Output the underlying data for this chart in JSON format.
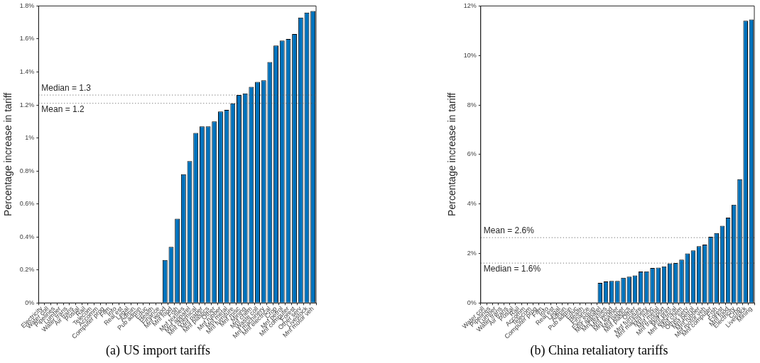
{
  "chart_data": [
    {
      "type": "bar",
      "title": "(a) US import tariffs",
      "ylabel": "Percentage increase in tariff",
      "color": "#0072bd",
      "categories": [
        "Electricity",
        "Water coll",
        "Pipelines",
        "Lumber",
        "Water trans",
        "Air trans",
        "Postal",
        "Rail",
        "Telecom",
        "Accomm",
        "Computer prog",
        "Film",
        "Info",
        "Real est",
        "Legal",
        "Admin",
        "Pub admin",
        "Educ",
        "Health",
        "Finance",
        "Mnf wood",
        "Mnf food",
        "Fish",
        "Mnf textiles",
        "Mnf apparel",
        "Mnf chemical",
        "Mnf paper",
        "Mnf plastics",
        "Other",
        "Mnf rubber",
        "Mnf metal",
        "Mnf furniture",
        "Mnf misc",
        "Mining",
        "Mnf chem",
        "Waste coll",
        "Mnf machinery",
        "Mnf electrical",
        "Crop",
        "Mnf petrol",
        "Mnf computer",
        "Forest",
        "Other serv",
        "Livestock",
        "Mnf motor veh"
      ],
      "values": [
        0,
        0,
        0,
        0,
        0,
        0,
        0,
        0,
        0,
        0,
        0,
        0,
        0,
        0,
        0,
        0,
        0,
        0,
        0,
        0,
        0.26,
        0.34,
        0.51,
        0.78,
        0.86,
        1.03,
        1.07,
        1.07,
        1.1,
        1.16,
        1.17,
        1.21,
        1.26,
        1.27,
        1.31,
        1.34,
        1.35,
        1.46,
        1.56,
        1.59,
        1.6,
        1.63,
        1.73,
        1.76,
        1.77
      ],
      "ylim": [
        0,
        1.8
      ],
      "yticks": [
        {
          "value": 0,
          "label": "0%"
        },
        {
          "value": 0.2,
          "label": "0.2%"
        },
        {
          "value": 0.4,
          "label": "0.4%"
        },
        {
          "value": 0.6,
          "label": "0.6%"
        },
        {
          "value": 0.8,
          "label": "0.8%"
        },
        {
          "value": 1,
          "label": "1%"
        },
        {
          "value": 1.2,
          "label": "1.2%"
        },
        {
          "value": 1.4,
          "label": "1.4%"
        },
        {
          "value": 1.6,
          "label": "1.6%"
        },
        {
          "value": 1.8,
          "label": "1.8%"
        }
      ],
      "ref_lines": [
        {
          "axis": "y",
          "value": 1.26,
          "label": "Median = 1.3",
          "line_style": "dotted"
        },
        {
          "axis": "y",
          "value": 1.21,
          "label": "Mean = 1.2",
          "line_style": "dotted"
        }
      ]
    },
    {
      "type": "bar",
      "title": "(b) China retaliatory tariffs",
      "ylabel": "Percentage increase in tariff",
      "color": "#0072bd",
      "categories": [
        "Water coll",
        "Pipelines",
        "Lumber",
        "Water trans",
        "Air trans",
        "Postal",
        "Rail",
        "Accomm",
        "Telecom",
        "Computer prog",
        "Film",
        "Info",
        "Real est",
        "Legal",
        "Admin",
        "Pub admin",
        "Educ",
        "Health",
        "Finance",
        "Elec equip",
        "Mnf apparel",
        "Mnf textiles",
        "Mnf wood",
        "Mnf leather",
        "Mnf paper",
        "Mnf plastics",
        "Other",
        "Mnf furniture",
        "Mnf machinery",
        "Mnf misc",
        "Mnf metal",
        "Mnf transport",
        "Mnf print",
        "Mnf electrical",
        "Mnf chem",
        "Other serv",
        "Mnf petrol",
        "Mnf rubber",
        "Mnf motor veh",
        "Mnf computer",
        "Fish",
        "Forest",
        "Mnf food",
        "Electricity",
        "Crop",
        "Livestock",
        "Mining"
      ],
      "values": [
        0,
        0,
        0,
        0,
        0,
        0,
        0,
        0,
        0,
        0,
        0,
        0,
        0,
        0,
        0,
        0,
        0,
        0,
        0,
        0,
        0.81,
        0.87,
        0.89,
        0.89,
        1.02,
        1.06,
        1.11,
        1.27,
        1.28,
        1.41,
        1.43,
        1.48,
        1.6,
        1.61,
        1.75,
        2.0,
        2.12,
        2.29,
        2.36,
        2.67,
        2.82,
        3.12,
        3.45,
        3.97,
        5.0,
        11.4,
        11.45
      ],
      "ylim": [
        0,
        12
      ],
      "yticks": [
        {
          "value": 0,
          "label": "0%"
        },
        {
          "value": 2,
          "label": "2%"
        },
        {
          "value": 4,
          "label": "4%"
        },
        {
          "value": 6,
          "label": "6%"
        },
        {
          "value": 8,
          "label": "8%"
        },
        {
          "value": 10,
          "label": "10%"
        },
        {
          "value": 12,
          "label": "12%"
        }
      ],
      "ref_lines": [
        {
          "axis": "y",
          "value": 2.64,
          "label": "Mean = 2.6%",
          "line_style": "dotted"
        },
        {
          "axis": "y",
          "value": 1.61,
          "label": "Median = 1.6%",
          "line_style": "dotted"
        }
      ]
    }
  ]
}
